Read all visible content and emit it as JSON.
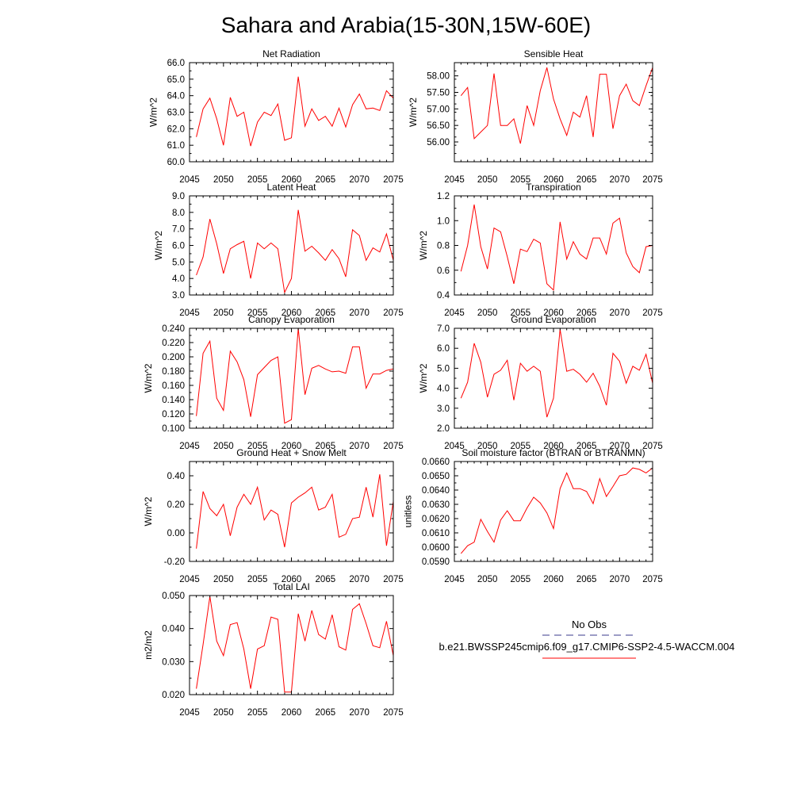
{
  "figure_title": "Sahara and Arabia(15-30N,15W-60E)",
  "legend": {
    "obs_label": "No Obs",
    "obs_color": "#3a3a8c",
    "model_label": "b.e21.BWSSP245cmip6.f09_g17.CMIP6-SSP2-4.5-WACCM.004",
    "model_color": "#ff0000"
  },
  "chart_data": [
    {
      "type": "line",
      "title": "Net Radiation",
      "ylabel": "W/m^2",
      "xlim": [
        2045,
        2075
      ],
      "ylim": [
        60.0,
        66.0
      ],
      "xticks": [
        "2045",
        "2050",
        "2055",
        "2060",
        "2065",
        "2070",
        "2075"
      ],
      "yticks": [
        "60.0",
        "61.0",
        "62.0",
        "63.0",
        "64.0",
        "65.0",
        "66.0"
      ],
      "x": [
        2046,
        2047,
        2048,
        2049,
        2050,
        2051,
        2052,
        2053,
        2054,
        2055,
        2056,
        2057,
        2058,
        2059,
        2060,
        2061,
        2062,
        2063,
        2064,
        2065,
        2066,
        2067,
        2068,
        2069,
        2070,
        2071,
        2072,
        2073,
        2074,
        2075
      ],
      "series": [
        {
          "values": [
            61.5,
            63.2,
            63.85,
            62.6,
            61.0,
            63.9,
            62.75,
            63.0,
            60.95,
            62.4,
            63.0,
            62.8,
            63.5,
            61.3,
            61.45,
            65.15,
            62.15,
            63.2,
            62.5,
            62.75,
            62.15,
            63.25,
            62.1,
            63.45,
            64.1,
            63.2,
            63.25,
            63.1,
            64.3,
            63.85
          ],
          "color": "#ff0000"
        }
      ]
    },
    {
      "type": "line",
      "title": "Sensible Heat",
      "ylabel": "W/m^2",
      "xlim": [
        2045,
        2075
      ],
      "ylim": [
        55.4,
        58.4
      ],
      "xticks": [
        "2045",
        "2050",
        "2055",
        "2060",
        "2065",
        "2070",
        "2075"
      ],
      "yticks": [
        "56.00",
        "56.50",
        "57.00",
        "57.50",
        "58.00"
      ],
      "x": [
        2046,
        2047,
        2048,
        2049,
        2050,
        2051,
        2052,
        2053,
        2054,
        2055,
        2056,
        2057,
        2058,
        2059,
        2060,
        2061,
        2062,
        2063,
        2064,
        2065,
        2066,
        2067,
        2068,
        2069,
        2070,
        2071,
        2072,
        2073,
        2074,
        2075
      ],
      "series": [
        {
          "values": [
            57.4,
            57.65,
            56.1,
            56.3,
            56.5,
            58.07,
            56.5,
            56.5,
            56.7,
            55.95,
            57.1,
            56.5,
            57.55,
            58.25,
            57.3,
            56.7,
            56.2,
            56.9,
            56.75,
            57.4,
            56.15,
            58.05,
            58.05,
            56.4,
            57.4,
            57.75,
            57.25,
            57.1,
            57.7,
            58.25
          ],
          "color": "#ff0000"
        }
      ]
    },
    {
      "type": "line",
      "title": "Latent Heat",
      "ylabel": "W/m^2",
      "xlim": [
        2045,
        2075
      ],
      "ylim": [
        3.0,
        9.0
      ],
      "xticks": [
        "2045",
        "2050",
        "2055",
        "2060",
        "2065",
        "2070",
        "2075"
      ],
      "yticks": [
        "3.0",
        "4.0",
        "5.0",
        "6.0",
        "7.0",
        "8.0",
        "9.0"
      ],
      "x": [
        2046,
        2047,
        2048,
        2049,
        2050,
        2051,
        2052,
        2053,
        2054,
        2055,
        2056,
        2057,
        2058,
        2059,
        2060,
        2061,
        2062,
        2063,
        2064,
        2065,
        2066,
        2067,
        2068,
        2069,
        2070,
        2071,
        2072,
        2073,
        2074,
        2075
      ],
      "series": [
        {
          "values": [
            4.2,
            5.3,
            7.6,
            6.1,
            4.3,
            5.8,
            6.05,
            6.25,
            4.0,
            6.15,
            5.8,
            6.15,
            5.8,
            3.15,
            4.0,
            8.15,
            5.65,
            5.95,
            5.55,
            5.1,
            5.75,
            5.2,
            4.1,
            6.95,
            6.6,
            5.1,
            5.85,
            5.6,
            6.7,
            5.1
          ],
          "color": "#ff0000"
        }
      ]
    },
    {
      "type": "line",
      "title": "Transpiration",
      "ylabel": "W/m^2",
      "xlim": [
        2045,
        2075
      ],
      "ylim": [
        0.4,
        1.2
      ],
      "xticks": [
        "2045",
        "2050",
        "2055",
        "2060",
        "2065",
        "2070",
        "2075"
      ],
      "yticks": [
        "0.4",
        "0.6",
        "0.8",
        "1.0",
        "1.2"
      ],
      "x": [
        2046,
        2047,
        2048,
        2049,
        2050,
        2051,
        2052,
        2053,
        2054,
        2055,
        2056,
        2057,
        2058,
        2059,
        2060,
        2061,
        2062,
        2063,
        2064,
        2065,
        2066,
        2067,
        2068,
        2069,
        2070,
        2071,
        2072,
        2073,
        2074,
        2075
      ],
      "series": [
        {
          "values": [
            0.59,
            0.8,
            1.13,
            0.79,
            0.61,
            0.94,
            0.91,
            0.71,
            0.49,
            0.77,
            0.75,
            0.85,
            0.82,
            0.49,
            0.44,
            0.99,
            0.69,
            0.83,
            0.73,
            0.69,
            0.86,
            0.86,
            0.73,
            0.98,
            1.02,
            0.74,
            0.63,
            0.58,
            0.79,
            0.8
          ],
          "color": "#ff0000"
        }
      ]
    },
    {
      "type": "line",
      "title": "Canopy Evaporation",
      "ylabel": "W/m^2",
      "xlim": [
        2045,
        2075
      ],
      "ylim": [
        0.1,
        0.24
      ],
      "xticks": [
        "2045",
        "2050",
        "2055",
        "2060",
        "2065",
        "2070",
        "2075"
      ],
      "yticks": [
        "0.100",
        "0.120",
        "0.140",
        "0.160",
        "0.180",
        "0.200",
        "0.220",
        "0.240"
      ],
      "x": [
        2046,
        2047,
        2048,
        2049,
        2050,
        2051,
        2052,
        2053,
        2054,
        2055,
        2056,
        2057,
        2058,
        2059,
        2060,
        2061,
        2062,
        2063,
        2064,
        2065,
        2066,
        2067,
        2068,
        2069,
        2070,
        2071,
        2072,
        2073,
        2074,
        2075
      ],
      "series": [
        {
          "values": [
            0.117,
            0.205,
            0.222,
            0.142,
            0.125,
            0.208,
            0.193,
            0.168,
            0.116,
            0.175,
            0.185,
            0.195,
            0.2,
            0.107,
            0.112,
            0.24,
            0.147,
            0.184,
            0.188,
            0.183,
            0.179,
            0.18,
            0.177,
            0.214,
            0.214,
            0.156,
            0.176,
            0.176,
            0.181,
            0.183
          ],
          "color": "#ff0000"
        }
      ]
    },
    {
      "type": "line",
      "title": "Ground Evaporation",
      "ylabel": "W/m^2",
      "xlim": [
        2045,
        2075
      ],
      "ylim": [
        2.0,
        7.0
      ],
      "xticks": [
        "2045",
        "2050",
        "2055",
        "2060",
        "2065",
        "2070",
        "2075"
      ],
      "yticks": [
        "2.0",
        "3.0",
        "4.0",
        "5.0",
        "6.0",
        "7.0"
      ],
      "x": [
        2046,
        2047,
        2048,
        2049,
        2050,
        2051,
        2052,
        2053,
        2054,
        2055,
        2056,
        2057,
        2058,
        2059,
        2060,
        2061,
        2062,
        2063,
        2064,
        2065,
        2066,
        2067,
        2068,
        2069,
        2070,
        2071,
        2072,
        2073,
        2074,
        2075
      ],
      "series": [
        {
          "values": [
            3.5,
            4.3,
            6.25,
            5.3,
            3.55,
            4.7,
            4.9,
            5.4,
            3.4,
            5.25,
            4.85,
            5.1,
            4.85,
            2.55,
            3.5,
            6.95,
            4.85,
            4.95,
            4.7,
            4.3,
            4.75,
            4.1,
            3.15,
            5.75,
            5.35,
            4.25,
            5.1,
            4.9,
            5.7,
            4.25
          ],
          "color": "#ff0000"
        }
      ]
    },
    {
      "type": "line",
      "title": "Ground Heat + Snow Melt",
      "ylabel": "W/m^2",
      "xlim": [
        2045,
        2075
      ],
      "ylim": [
        -0.2,
        0.5
      ],
      "xticks": [
        "2045",
        "2050",
        "2055",
        "2060",
        "2065",
        "2070",
        "2075"
      ],
      "yticks": [
        "-0.20",
        "0.00",
        "0.20",
        "0.40"
      ],
      "x": [
        2046,
        2047,
        2048,
        2049,
        2050,
        2051,
        2052,
        2053,
        2054,
        2055,
        2056,
        2057,
        2058,
        2059,
        2060,
        2061,
        2062,
        2063,
        2064,
        2065,
        2066,
        2067,
        2068,
        2069,
        2070,
        2071,
        2072,
        2073,
        2074,
        2075
      ],
      "series": [
        {
          "values": [
            -0.11,
            0.29,
            0.17,
            0.12,
            0.2,
            -0.02,
            0.18,
            0.27,
            0.2,
            0.32,
            0.09,
            0.16,
            0.13,
            -0.1,
            0.21,
            0.25,
            0.28,
            0.32,
            0.16,
            0.18,
            0.27,
            -0.03,
            -0.01,
            0.1,
            0.11,
            0.32,
            0.11,
            0.41,
            -0.09,
            0.22
          ],
          "color": "#ff0000"
        }
      ]
    },
    {
      "type": "line",
      "title": "Soil moisture factor (BTRAN or BTRANMN)",
      "ylabel": "unitless",
      "xlim": [
        2045,
        2075
      ],
      "ylim": [
        0.059,
        0.066
      ],
      "xticks": [
        "2045",
        "2050",
        "2055",
        "2060",
        "2065",
        "2070",
        "2075"
      ],
      "yticks": [
        "0.0590",
        "0.0600",
        "0.0610",
        "0.0620",
        "0.0630",
        "0.0640",
        "0.0650",
        "0.0660"
      ],
      "x": [
        2046,
        2047,
        2048,
        2049,
        2050,
        2051,
        2052,
        2053,
        2054,
        2055,
        2056,
        2057,
        2058,
        2059,
        2060,
        2061,
        2062,
        2063,
        2064,
        2065,
        2066,
        2067,
        2068,
        2069,
        2070,
        2071,
        2072,
        2073,
        2074,
        2075
      ],
      "series": [
        {
          "values": [
            0.05955,
            0.0601,
            0.06035,
            0.06195,
            0.0611,
            0.06035,
            0.0619,
            0.06255,
            0.06185,
            0.06185,
            0.06275,
            0.0635,
            0.0631,
            0.0624,
            0.0613,
            0.0641,
            0.0652,
            0.0641,
            0.0641,
            0.0639,
            0.06305,
            0.0648,
            0.06355,
            0.06425,
            0.065,
            0.0651,
            0.06555,
            0.06545,
            0.0652,
            0.06555
          ],
          "color": "#ff0000"
        }
      ]
    },
    {
      "type": "line",
      "title": "Total LAI",
      "ylabel": "m2/m2",
      "xlim": [
        2045,
        2075
      ],
      "ylim": [
        0.02,
        0.05
      ],
      "xticks": [
        "2045",
        "2050",
        "2055",
        "2060",
        "2065",
        "2070",
        "2075"
      ],
      "yticks": [
        "0.020",
        "0.030",
        "0.040",
        "0.050"
      ],
      "x": [
        2046,
        2047,
        2048,
        2049,
        2050,
        2051,
        2052,
        2053,
        2054,
        2055,
        2056,
        2057,
        2058,
        2059,
        2060,
        2061,
        2062,
        2063,
        2064,
        2065,
        2066,
        2067,
        2068,
        2069,
        2070,
        2071,
        2072,
        2073,
        2074,
        2075
      ],
      "series": [
        {
          "values": [
            0.0218,
            0.0352,
            0.0497,
            0.0362,
            0.0318,
            0.0412,
            0.0418,
            0.0338,
            0.0218,
            0.0338,
            0.0348,
            0.0435,
            0.0428,
            0.0208,
            0.0208,
            0.0445,
            0.0362,
            0.0455,
            0.0382,
            0.0368,
            0.0442,
            0.0345,
            0.0335,
            0.0458,
            0.0475,
            0.0415,
            0.0348,
            0.0342,
            0.0422,
            0.0318
          ],
          "color": "#ff0000"
        }
      ]
    }
  ]
}
